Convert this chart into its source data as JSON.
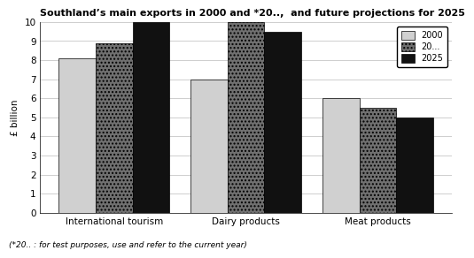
{
  "title": "Southland’s main exports in 2000 and *20..,  and future projections for 2025",
  "footnote": "(*20.. : for test purposes, use and refer to the current year)",
  "categories": [
    "International tourism",
    "Dairy products",
    "Meat products"
  ],
  "series": {
    "2000": [
      8.1,
      7.0,
      6.0
    ],
    "20...": [
      8.9,
      10.0,
      5.5
    ],
    "2025": [
      10.0,
      9.5,
      5.0
    ]
  },
  "ylabel": "£ billion",
  "ylim": [
    0,
    10
  ],
  "yticks": [
    0,
    1,
    2,
    3,
    4,
    5,
    6,
    7,
    8,
    9,
    10
  ],
  "bar_colors": {
    "2000": "#d0d0d0",
    "20...": "#707070",
    "2025": "#111111"
  },
  "bar_hatches": {
    "2000": "",
    "20...": "....",
    "2025": ""
  },
  "legend_labels": [
    "2000",
    "20...",
    "2025"
  ],
  "bar_width": 0.28,
  "background_color": "#ffffff",
  "grid_color": "#bbbbbb"
}
